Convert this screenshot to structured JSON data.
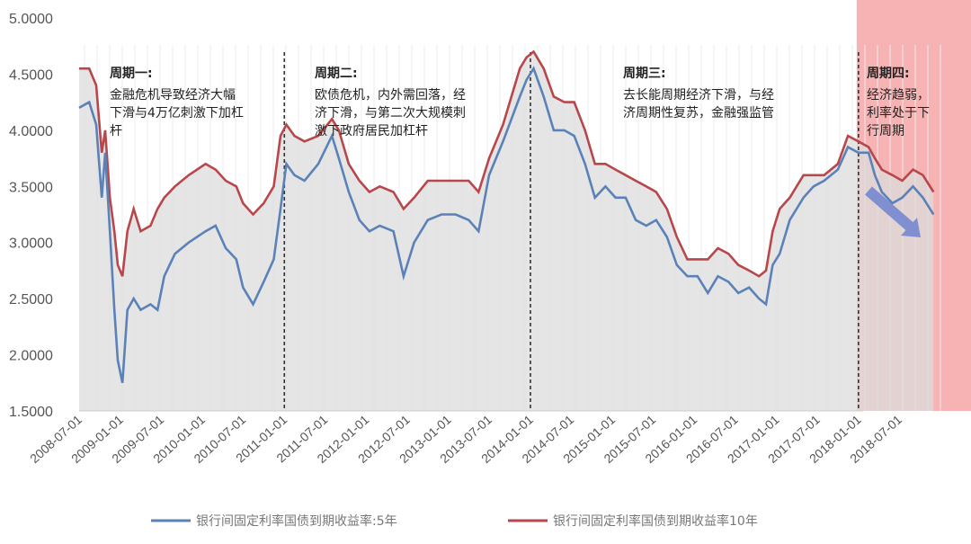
{
  "colors": {
    "series_5y": "#5b82b8",
    "series_10y": "#b8474c",
    "area_fill": "#dcdcdc",
    "highlight": "#f7b3b3",
    "arrow": "#7f8fcf"
  },
  "chart_data": {
    "type": "line",
    "ylim": [
      1.5,
      5.0
    ],
    "y_ticks": [
      "1.5000",
      "2.0000",
      "2.5000",
      "3.0000",
      "3.5000",
      "4.0000",
      "4.5000",
      "5.0000"
    ],
    "x_range": [
      "2008-07-01",
      "2019-01-01"
    ],
    "x_ticks": [
      "2008-07-01",
      "2009-01-01",
      "2009-07-01",
      "2010-01-01",
      "2010-07-01",
      "2011-01-01",
      "2011-07-01",
      "2012-01-01",
      "2012-07-01",
      "2013-01-01",
      "2013-07-01",
      "2014-01-01",
      "2014-07-01",
      "2015-01-01",
      "2015-07-01",
      "2016-01-01",
      "2016-07-01",
      "2017-01-01",
      "2017-07-01",
      "2018-01-01",
      "2018-07-01"
    ],
    "dividers": [
      "2011-01-01",
      "2014-01-01",
      "2018-01-01"
    ],
    "highlight_start": "2018-01-01",
    "series": [
      {
        "name": "银行间固定利率国债到期收益率:5年",
        "points": [
          [
            "2008-07-01",
            4.2
          ],
          [
            "2008-08-15",
            4.25
          ],
          [
            "2008-09-15",
            4.05
          ],
          [
            "2008-10-10",
            3.4
          ],
          [
            "2008-10-25",
            3.8
          ],
          [
            "2008-11-15",
            3.1
          ],
          [
            "2008-12-05",
            2.4
          ],
          [
            "2008-12-20",
            1.95
          ],
          [
            "2009-01-10",
            1.75
          ],
          [
            "2009-02-01",
            2.4
          ],
          [
            "2009-03-01",
            2.5
          ],
          [
            "2009-04-01",
            2.4
          ],
          [
            "2009-05-15",
            2.45
          ],
          [
            "2009-06-15",
            2.4
          ],
          [
            "2009-07-15",
            2.7
          ],
          [
            "2009-09-01",
            2.9
          ],
          [
            "2009-11-01",
            3.0
          ],
          [
            "2010-01-15",
            3.1
          ],
          [
            "2010-03-01",
            3.15
          ],
          [
            "2010-04-15",
            2.95
          ],
          [
            "2010-06-01",
            2.85
          ],
          [
            "2010-07-01",
            2.6
          ],
          [
            "2010-08-15",
            2.45
          ],
          [
            "2010-10-01",
            2.65
          ],
          [
            "2010-11-15",
            2.85
          ],
          [
            "2010-12-15",
            3.3
          ],
          [
            "2011-01-10",
            3.7
          ],
          [
            "2011-02-15",
            3.6
          ],
          [
            "2011-04-01",
            3.55
          ],
          [
            "2011-06-01",
            3.7
          ],
          [
            "2011-08-01",
            3.95
          ],
          [
            "2011-09-01",
            3.75
          ],
          [
            "2011-10-15",
            3.45
          ],
          [
            "2011-12-01",
            3.2
          ],
          [
            "2012-01-15",
            3.1
          ],
          [
            "2012-03-01",
            3.15
          ],
          [
            "2012-05-01",
            3.1
          ],
          [
            "2012-06-15",
            2.7
          ],
          [
            "2012-08-01",
            3.0
          ],
          [
            "2012-10-01",
            3.2
          ],
          [
            "2012-12-01",
            3.25
          ],
          [
            "2013-02-01",
            3.25
          ],
          [
            "2013-04-01",
            3.2
          ],
          [
            "2013-05-15",
            3.1
          ],
          [
            "2013-07-01",
            3.6
          ],
          [
            "2013-09-01",
            3.9
          ],
          [
            "2013-11-15",
            4.3
          ],
          [
            "2013-12-15",
            4.45
          ],
          [
            "2014-01-15",
            4.55
          ],
          [
            "2014-03-01",
            4.3
          ],
          [
            "2014-04-15",
            4.0
          ],
          [
            "2014-06-01",
            4.0
          ],
          [
            "2014-07-15",
            3.95
          ],
          [
            "2014-09-01",
            3.7
          ],
          [
            "2014-10-15",
            3.4
          ],
          [
            "2014-12-01",
            3.5
          ],
          [
            "2015-01-15",
            3.4
          ],
          [
            "2015-03-01",
            3.4
          ],
          [
            "2015-04-15",
            3.2
          ],
          [
            "2015-06-01",
            3.15
          ],
          [
            "2015-07-15",
            3.2
          ],
          [
            "2015-09-01",
            3.05
          ],
          [
            "2015-10-15",
            2.8
          ],
          [
            "2015-12-01",
            2.7
          ],
          [
            "2016-01-15",
            2.7
          ],
          [
            "2016-03-01",
            2.55
          ],
          [
            "2016-04-15",
            2.7
          ],
          [
            "2016-06-01",
            2.65
          ],
          [
            "2016-07-15",
            2.55
          ],
          [
            "2016-09-01",
            2.6
          ],
          [
            "2016-10-15",
            2.5
          ],
          [
            "2016-11-15",
            2.45
          ],
          [
            "2016-12-15",
            2.8
          ],
          [
            "2017-01-15",
            2.9
          ],
          [
            "2017-03-01",
            3.2
          ],
          [
            "2017-05-01",
            3.4
          ],
          [
            "2017-06-15",
            3.5
          ],
          [
            "2017-08-01",
            3.55
          ],
          [
            "2017-10-01",
            3.65
          ],
          [
            "2017-11-15",
            3.85
          ],
          [
            "2018-01-01",
            3.8
          ],
          [
            "2018-02-15",
            3.8
          ],
          [
            "2018-03-15",
            3.6
          ],
          [
            "2018-04-15",
            3.45
          ],
          [
            "2018-06-01",
            3.35
          ],
          [
            "2018-07-15",
            3.4
          ],
          [
            "2018-09-01",
            3.5
          ],
          [
            "2018-10-15",
            3.4
          ],
          [
            "2018-12-01",
            3.25
          ]
        ]
      },
      {
        "name": "银行间固定利率国债到期收益率10年",
        "points": [
          [
            "2008-07-01",
            4.55
          ],
          [
            "2008-08-15",
            4.55
          ],
          [
            "2008-09-15",
            4.4
          ],
          [
            "2008-10-10",
            3.8
          ],
          [
            "2008-10-25",
            4.0
          ],
          [
            "2008-11-15",
            3.4
          ],
          [
            "2008-12-05",
            3.1
          ],
          [
            "2008-12-20",
            2.8
          ],
          [
            "2009-01-10",
            2.7
          ],
          [
            "2009-02-01",
            3.1
          ],
          [
            "2009-03-01",
            3.3
          ],
          [
            "2009-04-01",
            3.1
          ],
          [
            "2009-05-15",
            3.15
          ],
          [
            "2009-06-15",
            3.3
          ],
          [
            "2009-07-15",
            3.4
          ],
          [
            "2009-09-01",
            3.5
          ],
          [
            "2009-11-01",
            3.6
          ],
          [
            "2010-01-15",
            3.7
          ],
          [
            "2010-03-01",
            3.65
          ],
          [
            "2010-04-15",
            3.55
          ],
          [
            "2010-06-01",
            3.5
          ],
          [
            "2010-07-01",
            3.35
          ],
          [
            "2010-08-15",
            3.25
          ],
          [
            "2010-10-01",
            3.35
          ],
          [
            "2010-11-15",
            3.5
          ],
          [
            "2010-12-15",
            3.95
          ],
          [
            "2011-01-10",
            4.05
          ],
          [
            "2011-02-15",
            3.95
          ],
          [
            "2011-04-01",
            3.9
          ],
          [
            "2011-06-01",
            3.95
          ],
          [
            "2011-08-01",
            4.1
          ],
          [
            "2011-09-01",
            4.0
          ],
          [
            "2011-10-15",
            3.7
          ],
          [
            "2011-12-01",
            3.55
          ],
          [
            "2012-01-15",
            3.45
          ],
          [
            "2012-03-01",
            3.5
          ],
          [
            "2012-05-01",
            3.45
          ],
          [
            "2012-06-15",
            3.3
          ],
          [
            "2012-08-01",
            3.4
          ],
          [
            "2012-10-01",
            3.55
          ],
          [
            "2012-12-01",
            3.55
          ],
          [
            "2013-02-01",
            3.55
          ],
          [
            "2013-04-01",
            3.55
          ],
          [
            "2013-05-15",
            3.45
          ],
          [
            "2013-07-01",
            3.75
          ],
          [
            "2013-09-01",
            4.05
          ],
          [
            "2013-11-15",
            4.55
          ],
          [
            "2013-12-15",
            4.65
          ],
          [
            "2014-01-15",
            4.7
          ],
          [
            "2014-03-01",
            4.55
          ],
          [
            "2014-04-15",
            4.3
          ],
          [
            "2014-06-01",
            4.25
          ],
          [
            "2014-07-15",
            4.25
          ],
          [
            "2014-09-01",
            4.0
          ],
          [
            "2014-10-15",
            3.7
          ],
          [
            "2014-12-01",
            3.7
          ],
          [
            "2015-01-15",
            3.65
          ],
          [
            "2015-03-01",
            3.6
          ],
          [
            "2015-04-15",
            3.55
          ],
          [
            "2015-06-01",
            3.5
          ],
          [
            "2015-07-15",
            3.45
          ],
          [
            "2015-09-01",
            3.3
          ],
          [
            "2015-10-15",
            3.05
          ],
          [
            "2015-12-01",
            2.85
          ],
          [
            "2016-01-15",
            2.85
          ],
          [
            "2016-03-01",
            2.85
          ],
          [
            "2016-04-15",
            2.95
          ],
          [
            "2016-06-01",
            2.9
          ],
          [
            "2016-07-15",
            2.8
          ],
          [
            "2016-09-01",
            2.75
          ],
          [
            "2016-10-15",
            2.7
          ],
          [
            "2016-11-15",
            2.75
          ],
          [
            "2016-12-15",
            3.1
          ],
          [
            "2017-01-15",
            3.3
          ],
          [
            "2017-03-01",
            3.4
          ],
          [
            "2017-05-01",
            3.6
          ],
          [
            "2017-06-15",
            3.6
          ],
          [
            "2017-08-01",
            3.6
          ],
          [
            "2017-10-01",
            3.7
          ],
          [
            "2017-11-15",
            3.95
          ],
          [
            "2018-01-01",
            3.9
          ],
          [
            "2018-02-15",
            3.85
          ],
          [
            "2018-03-15",
            3.75
          ],
          [
            "2018-04-15",
            3.65
          ],
          [
            "2018-06-01",
            3.6
          ],
          [
            "2018-07-15",
            3.55
          ],
          [
            "2018-09-01",
            3.65
          ],
          [
            "2018-10-15",
            3.6
          ],
          [
            "2018-12-01",
            3.45
          ]
        ]
      }
    ],
    "annotations": [
      {
        "title": "周期一:",
        "lines": [
          "金融危机导致经济大幅",
          "下滑与4万亿刺激下加杠",
          "杆"
        ]
      },
      {
        "title": "周期二:",
        "lines": [
          "欧债危机，内外需回落，经",
          "济下滑，与第二次大规模刺",
          "激下政府居民加杠杆"
        ]
      },
      {
        "title": "周期三:",
        "lines": [
          "去长能周期经济下滑，与经",
          "济周期性复苏，金融强监管"
        ]
      },
      {
        "title": "周期四:",
        "lines": [
          "经济趋弱，",
          "利率处于下",
          "行周期"
        ]
      }
    ],
    "legend_position": "bottom"
  }
}
